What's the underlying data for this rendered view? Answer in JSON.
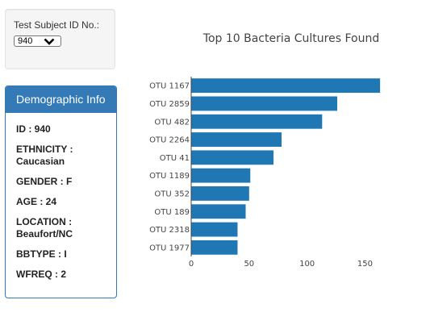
{
  "selector": {
    "label": "Test Subject ID No.:",
    "selected": "940"
  },
  "demographics": {
    "heading": "Demographic Info",
    "lines": [
      "ID : 940",
      "ETHNICITY : Caucasian",
      "GENDER : F",
      "AGE : 24",
      "LOCATION : Beaufort/NC",
      "BBTYPE : I",
      "WFREQ : 2"
    ]
  },
  "colors": {
    "bar": "#1f77b4",
    "panel_accent": "#337ab7"
  },
  "chart_data": {
    "type": "bar",
    "orientation": "horizontal",
    "title": "Top 10 Bacteria Cultures Found",
    "categories": [
      "OTU 1167",
      "OTU 2859",
      "OTU 482",
      "OTU 2264",
      "OTU 41",
      "OTU 1189",
      "OTU 352",
      "OTU 189",
      "OTU 2318",
      "OTU 1977"
    ],
    "values": [
      163,
      126,
      113,
      78,
      71,
      51,
      50,
      47,
      40,
      40
    ],
    "xlim": [
      0,
      165
    ],
    "xticks": [
      0,
      50,
      100,
      150
    ],
    "grid": false,
    "legend": "none"
  }
}
